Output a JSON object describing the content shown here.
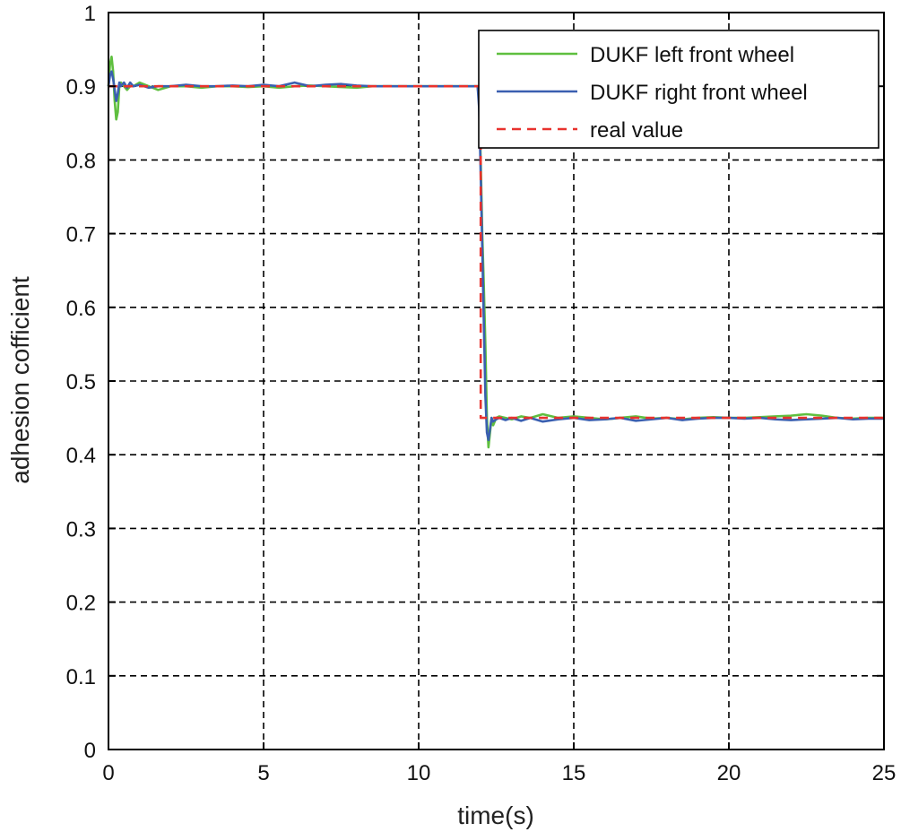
{
  "chart_data": {
    "type": "line",
    "title": "",
    "xlabel": "time(s)",
    "ylabel": "adhesion cofficient",
    "xlim": [
      0,
      25
    ],
    "ylim": [
      0,
      1
    ],
    "xticks": [
      0,
      5,
      10,
      15,
      20,
      25
    ],
    "yticks": [
      0,
      0.1,
      0.2,
      0.3,
      0.4,
      0.5,
      0.6,
      0.7,
      0.8,
      0.9,
      1
    ],
    "xtick_labels": [
      "0",
      "5",
      "10",
      "15",
      "20",
      "25"
    ],
    "ytick_labels": [
      "0",
      "0.1",
      "0.2",
      "0.3",
      "0.4",
      "0.5",
      "0.6",
      "0.7",
      "0.8",
      "0.9",
      "1"
    ],
    "grid": true,
    "grid_style": "dashed",
    "legend_position": "top-right",
    "series": [
      {
        "name": "DUKF left front wheel",
        "color": "#5fbf3f",
        "style": "solid",
        "x": [
          0,
          0.05,
          0.1,
          0.15,
          0.2,
          0.25,
          0.3,
          0.35,
          0.4,
          0.5,
          0.6,
          0.7,
          0.8,
          1.0,
          1.3,
          1.6,
          2.0,
          2.5,
          3.0,
          3.5,
          4.0,
          4.5,
          5.0,
          5.5,
          6.0,
          6.5,
          7.0,
          7.5,
          8.0,
          8.5,
          9.0,
          9.5,
          10.0,
          10.5,
          11.0,
          11.5,
          11.9,
          11.95,
          12.0,
          12.05,
          12.1,
          12.15,
          12.2,
          12.25,
          12.3,
          12.35,
          12.4,
          12.5,
          12.6,
          12.8,
          13.0,
          13.3,
          13.6,
          14.0,
          14.5,
          15.0,
          15.5,
          16.0,
          16.5,
          17.0,
          17.5,
          18.0,
          18.5,
          19.0,
          19.5,
          20.0,
          20.5,
          21.0,
          21.5,
          22.0,
          22.5,
          23.0,
          23.5,
          24.0,
          24.5,
          25.0
        ],
        "y": [
          0.9,
          0.93,
          0.94,
          0.92,
          0.88,
          0.855,
          0.865,
          0.9,
          0.905,
          0.9,
          0.895,
          0.9,
          0.9,
          0.905,
          0.9,
          0.895,
          0.9,
          0.9,
          0.898,
          0.9,
          0.9,
          0.899,
          0.9,
          0.898,
          0.9,
          0.901,
          0.9,
          0.899,
          0.898,
          0.9,
          0.9,
          0.9,
          0.9,
          0.9,
          0.9,
          0.9,
          0.9,
          0.88,
          0.8,
          0.7,
          0.63,
          0.55,
          0.45,
          0.41,
          0.43,
          0.45,
          0.44,
          0.45,
          0.452,
          0.45,
          0.448,
          0.452,
          0.45,
          0.455,
          0.45,
          0.452,
          0.45,
          0.448,
          0.45,
          0.452,
          0.449,
          0.45,
          0.448,
          0.45,
          0.451,
          0.45,
          0.45,
          0.451,
          0.452,
          0.453,
          0.455,
          0.453,
          0.45,
          0.449,
          0.45,
          0.45
        ]
      },
      {
        "name": "DUKF right front wheel",
        "color": "#3a5fb0",
        "style": "solid",
        "x": [
          0,
          0.05,
          0.1,
          0.15,
          0.2,
          0.25,
          0.3,
          0.35,
          0.4,
          0.5,
          0.6,
          0.7,
          0.8,
          1.0,
          1.3,
          1.6,
          2.0,
          2.5,
          3.0,
          3.5,
          4.0,
          4.5,
          5.0,
          5.5,
          6.0,
          6.5,
          7.0,
          7.5,
          8.0,
          8.5,
          9.0,
          9.5,
          10.0,
          10.5,
          11.0,
          11.5,
          11.9,
          11.95,
          12.0,
          12.05,
          12.1,
          12.15,
          12.2,
          12.25,
          12.3,
          12.35,
          12.4,
          12.5,
          12.6,
          12.8,
          13.0,
          13.3,
          13.6,
          14.0,
          14.5,
          15.0,
          15.5,
          16.0,
          16.5,
          17.0,
          17.5,
          18.0,
          18.5,
          19.0,
          19.5,
          20.0,
          20.5,
          21.0,
          21.5,
          22.0,
          22.5,
          23.0,
          23.5,
          24.0,
          24.5,
          25.0
        ],
        "y": [
          0.9,
          0.915,
          0.92,
          0.91,
          0.895,
          0.88,
          0.89,
          0.905,
          0.9,
          0.905,
          0.898,
          0.905,
          0.9,
          0.902,
          0.898,
          0.9,
          0.9,
          0.902,
          0.9,
          0.9,
          0.901,
          0.9,
          0.902,
          0.9,
          0.905,
          0.9,
          0.902,
          0.903,
          0.901,
          0.9,
          0.9,
          0.9,
          0.9,
          0.9,
          0.9,
          0.9,
          0.9,
          0.87,
          0.78,
          0.68,
          0.58,
          0.48,
          0.43,
          0.42,
          0.435,
          0.45,
          0.445,
          0.448,
          0.45,
          0.447,
          0.45,
          0.446,
          0.45,
          0.445,
          0.448,
          0.45,
          0.447,
          0.448,
          0.45,
          0.446,
          0.448,
          0.45,
          0.447,
          0.449,
          0.45,
          0.45,
          0.449,
          0.45,
          0.448,
          0.447,
          0.448,
          0.449,
          0.45,
          0.448,
          0.449,
          0.449
        ]
      },
      {
        "name": "real value",
        "color": "#e8322e",
        "style": "dashed",
        "x": [
          0,
          12.0,
          12.0,
          25
        ],
        "y": [
          0.9,
          0.9,
          0.45,
          0.45
        ]
      }
    ]
  }
}
